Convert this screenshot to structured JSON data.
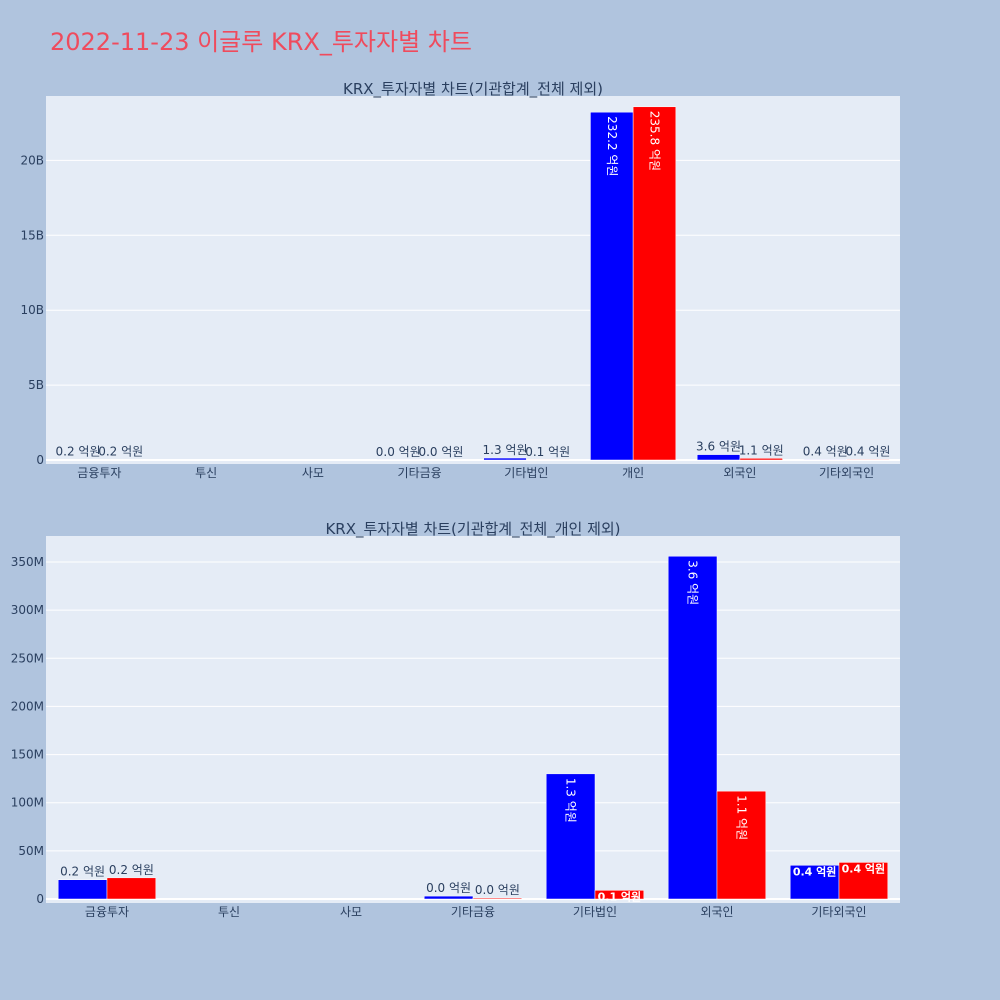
{
  "page_title": "2022-11-23 이글루 KRX_투자자별 차트",
  "colors": {
    "buy": "#0000ff",
    "sell": "#ff0000",
    "plot_bg": "#e5ecf6",
    "page_bg": "#b0c4de",
    "title": "#ef4b5d"
  },
  "chart_data": [
    {
      "type": "bar",
      "title": "KRX_투자자별 차트(기관합계_전체 제외)",
      "categories": [
        "금융투자",
        "투신",
        "사모",
        "기타금융",
        "기타법인",
        "개인",
        "외국인",
        "기타외국인"
      ],
      "series": [
        {
          "values": [
            20000000,
            0,
            0,
            3000000,
            130000000,
            23220000000,
            360000000,
            36000000
          ],
          "labels": [
            "0.2 억원",
            "",
            "",
            "0.0 억원",
            "1.3 억원",
            "232.2 억원",
            "3.6 억원",
            "0.4 억원"
          ]
        },
        {
          "values": [
            22000000,
            0,
            0,
            1000000,
            9000000,
            23580000000,
            112000000,
            38000000
          ],
          "labels": [
            "0.2 억원",
            "",
            "",
            "0.0 억원",
            "0.1 억원",
            "235.8 억원",
            "1.1 억원",
            "0.4 억원"
          ]
        }
      ],
      "ylim": [
        0,
        24300000000
      ],
      "yticks": [
        0,
        5000000000,
        10000000000,
        15000000000,
        20000000000
      ],
      "ytick_labels": [
        "0",
        "5B",
        "10B",
        "15B",
        "20B"
      ],
      "grid": true
    },
    {
      "type": "bar",
      "title": "KRX_투자자별 차트(기관합계_전체_개인 제외)",
      "categories": [
        "금융투자",
        "투신",
        "사모",
        "기타금융",
        "기타법인",
        "외국인",
        "기타외국인"
      ],
      "series": [
        {
          "values": [
            20000000,
            0,
            0,
            3000000,
            130000000,
            356000000,
            35000000
          ],
          "labels": [
            "0.2 억원",
            "",
            "",
            "0.0 억원",
            "1.3 억원",
            "3.6 억원",
            "0.4 억원"
          ]
        },
        {
          "values": [
            22000000,
            0,
            0,
            1000000,
            9000000,
            112000000,
            38000000
          ],
          "labels": [
            "0.2 억원",
            "",
            "",
            "0.0 억원",
            "0.1 억원",
            "1.1 억원",
            "0.4 억원"
          ]
        }
      ],
      "ylim": [
        0,
        377000000
      ],
      "yticks": [
        0,
        50000000,
        100000000,
        150000000,
        200000000,
        250000000,
        300000000,
        350000000
      ],
      "ytick_labels": [
        "0",
        "50M",
        "100M",
        "150M",
        "200M",
        "250M",
        "300M",
        "350M"
      ],
      "grid": true
    }
  ]
}
